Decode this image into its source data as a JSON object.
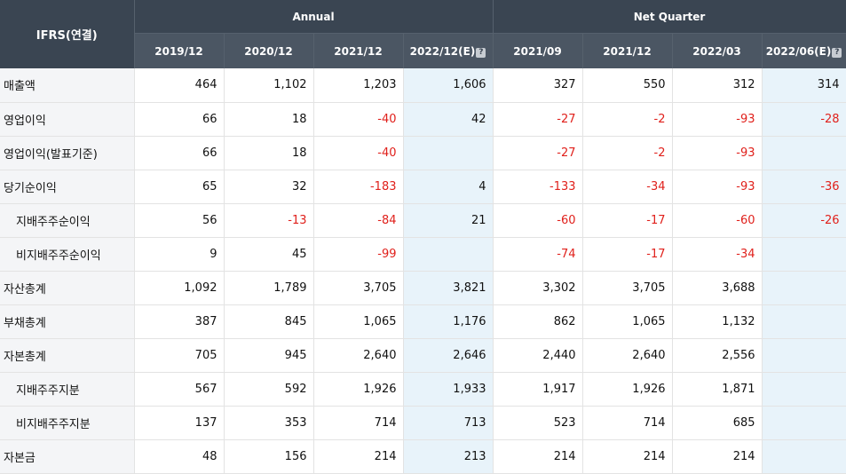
{
  "header": {
    "corner": "IFRS(연결)",
    "annual_label": "Annual",
    "quarter_label": "Net Quarter",
    "help_glyph": "?",
    "columns": [
      "2019/12",
      "2020/12",
      "2021/12",
      "2022/12(E)",
      "2021/09",
      "2021/12",
      "2022/03",
      "2022/06(E)"
    ],
    "estimate_columns": [
      3,
      7
    ]
  },
  "rows": [
    {
      "label": "매출액",
      "sub": false,
      "values": [
        "464",
        "1,102",
        "1,203",
        "1,606",
        "327",
        "550",
        "312",
        "314"
      ]
    },
    {
      "label": "영업이익",
      "sub": false,
      "values": [
        "66",
        "18",
        "-40",
        "42",
        "-27",
        "-2",
        "-93",
        "-28"
      ]
    },
    {
      "label": "영업이익(발표기준)",
      "sub": false,
      "values": [
        "66",
        "18",
        "-40",
        "",
        "-27",
        "-2",
        "-93",
        ""
      ]
    },
    {
      "label": "당기순이익",
      "sub": false,
      "values": [
        "65",
        "32",
        "-183",
        "4",
        "-133",
        "-34",
        "-93",
        "-36"
      ]
    },
    {
      "label": "지배주주순이익",
      "sub": true,
      "values": [
        "56",
        "-13",
        "-84",
        "21",
        "-60",
        "-17",
        "-60",
        "-26"
      ]
    },
    {
      "label": "비지배주주순이익",
      "sub": true,
      "values": [
        "9",
        "45",
        "-99",
        "",
        "-74",
        "-17",
        "-34",
        ""
      ]
    },
    {
      "label": "자산총계",
      "sub": false,
      "values": [
        "1,092",
        "1,789",
        "3,705",
        "3,821",
        "3,302",
        "3,705",
        "3,688",
        ""
      ]
    },
    {
      "label": "부채총계",
      "sub": false,
      "values": [
        "387",
        "845",
        "1,065",
        "1,176",
        "862",
        "1,065",
        "1,132",
        ""
      ]
    },
    {
      "label": "자본총계",
      "sub": false,
      "values": [
        "705",
        "945",
        "2,640",
        "2,646",
        "2,440",
        "2,640",
        "2,556",
        ""
      ]
    },
    {
      "label": "지배주주지분",
      "sub": true,
      "values": [
        "567",
        "592",
        "1,926",
        "1,933",
        "1,917",
        "1,926",
        "1,871",
        ""
      ]
    },
    {
      "label": "비지배주주지분",
      "sub": true,
      "values": [
        "137",
        "353",
        "714",
        "713",
        "523",
        "714",
        "685",
        ""
      ]
    },
    {
      "label": "자본금",
      "sub": false,
      "values": [
        "48",
        "156",
        "214",
        "213",
        "214",
        "214",
        "214",
        ""
      ]
    }
  ],
  "colors": {
    "header_bg": "#3a4552",
    "estimate_bg": "#e8f3fa",
    "negative": "#e0201b"
  }
}
